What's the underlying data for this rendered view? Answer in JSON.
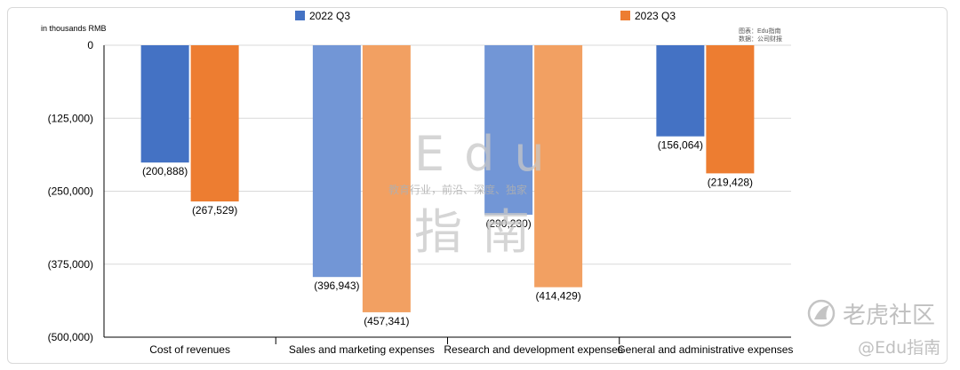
{
  "chart_data": {
    "type": "bar",
    "unit_label": "in thousands RMB",
    "categories": [
      "Cost of revenues",
      "Sales and marketing expenses",
      "Research and development expenses",
      "General and administrative expenses"
    ],
    "series": [
      {
        "name": "2022 Q3",
        "values": [
          -200888,
          -396943,
          -290230,
          -156064
        ],
        "labels": [
          "(200,888)",
          "(396,943)",
          "(290,230)",
          "(156,064)"
        ]
      },
      {
        "name": "2023 Q3",
        "values": [
          -267529,
          -457341,
          -414429,
          -219428
        ],
        "labels": [
          "(267,529)",
          "(457,341)",
          "(414,429)",
          "(219,428)"
        ]
      }
    ],
    "ylim": [
      -500000,
      0
    ],
    "yticks": [
      0,
      -125000,
      -250000,
      -375000,
      -500000
    ],
    "ytick_labels": [
      "0",
      "(125,000)",
      "(250,000)",
      "(375,000)",
      "(500,000)"
    ],
    "grid": true,
    "legend_position": "top",
    "source_lines": [
      "图表：Edu指南",
      "数据：公司财报"
    ]
  },
  "colors": {
    "series_2022": "#4472C4",
    "series_2022_light": "#7296D6",
    "series_2023": "#ED7D31",
    "series_2023_light": "#F2A062",
    "grid": "#d9d9d9"
  },
  "watermark": {
    "latin": "Edu",
    "tagline": "教育行业，前沿、深度、独家",
    "chinese": "指南"
  },
  "branding": {
    "community": "老虎社区",
    "handle": "@Edu指南"
  }
}
